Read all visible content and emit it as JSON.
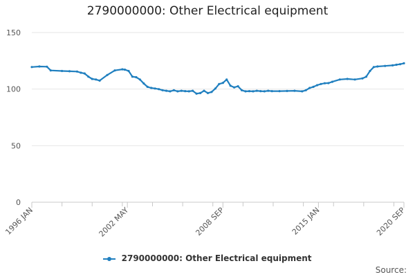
{
  "chart_data": {
    "type": "line",
    "title": "2790000000: Other Electrical equipment",
    "xlabel": "",
    "ylabel": "",
    "ylim": [
      0,
      150
    ],
    "yticks": [
      0,
      50,
      100,
      150
    ],
    "x_tick_labels": [
      "1996 JAN",
      "2002 MAY",
      "2008 SEP",
      "2015 JAN",
      "2020 SEP"
    ],
    "x_tick_months": [
      "1996-01",
      "2002-05",
      "2008-09",
      "2015-01",
      "2020-09"
    ],
    "grid": "horizontal",
    "legend_position": "bottom",
    "series": [
      {
        "name": "2790000000: Other Electrical equipment",
        "color": "#1f7fbf",
        "x": [
          "1996-01",
          "1996-07",
          "1997-01",
          "1997-04",
          "1998-01",
          "1998-07",
          "1999-01",
          "1999-04",
          "1999-07",
          "1999-10",
          "2000-01",
          "2000-04",
          "2000-07",
          "2001-01",
          "2001-07",
          "2002-01",
          "2002-03",
          "2002-06",
          "2002-09",
          "2002-12",
          "2003-03",
          "2003-06",
          "2003-09",
          "2003-12",
          "2004-03",
          "2004-06",
          "2004-09",
          "2004-12",
          "2005-03",
          "2005-06",
          "2005-09",
          "2005-12",
          "2006-03",
          "2006-06",
          "2006-09",
          "2006-12",
          "2007-03",
          "2007-06",
          "2007-09",
          "2007-12",
          "2008-03",
          "2008-06",
          "2008-09",
          "2008-12",
          "2009-03",
          "2009-06",
          "2009-09",
          "2009-12",
          "2010-03",
          "2010-06",
          "2010-09",
          "2010-12",
          "2011-03",
          "2011-06",
          "2011-09",
          "2011-12",
          "2012-06",
          "2012-12",
          "2013-06",
          "2013-12",
          "2014-03",
          "2014-06",
          "2014-09",
          "2014-12",
          "2015-03",
          "2015-06",
          "2015-09",
          "2015-12",
          "2016-06",
          "2016-12",
          "2017-06",
          "2017-12",
          "2018-03",
          "2018-06",
          "2018-09",
          "2018-12",
          "2019-06",
          "2019-12",
          "2020-03",
          "2020-06",
          "2020-09"
        ],
        "y": [
          119.5,
          120,
          119.8,
          116.5,
          116,
          115.8,
          115.5,
          114.5,
          113.8,
          111,
          109,
          108.5,
          107.5,
          112.5,
          116.5,
          117.5,
          117.2,
          116,
          111,
          110.5,
          108.5,
          105,
          102,
          101,
          100.5,
          100,
          99,
          98.5,
          98,
          99,
          98,
          98.5,
          98.2,
          98,
          98.5,
          96,
          96.5,
          98.5,
          96.5,
          97.5,
          100.5,
          104.5,
          105.5,
          108.5,
          103,
          101.5,
          102.5,
          99,
          98,
          98.2,
          98,
          98.5,
          98.2,
          98,
          98.5,
          98.2,
          98.2,
          98.3,
          98.5,
          98,
          99,
          101,
          102,
          103.5,
          104.5,
          105.2,
          105.3,
          106.5,
          108.5,
          109,
          108.5,
          109.5,
          111,
          116,
          119.5,
          120,
          120.5,
          121,
          121.5,
          122,
          122.8
        ]
      }
    ]
  },
  "legend": {
    "label": "2790000000: Other Electrical equipment"
  },
  "source_label": "Source:"
}
